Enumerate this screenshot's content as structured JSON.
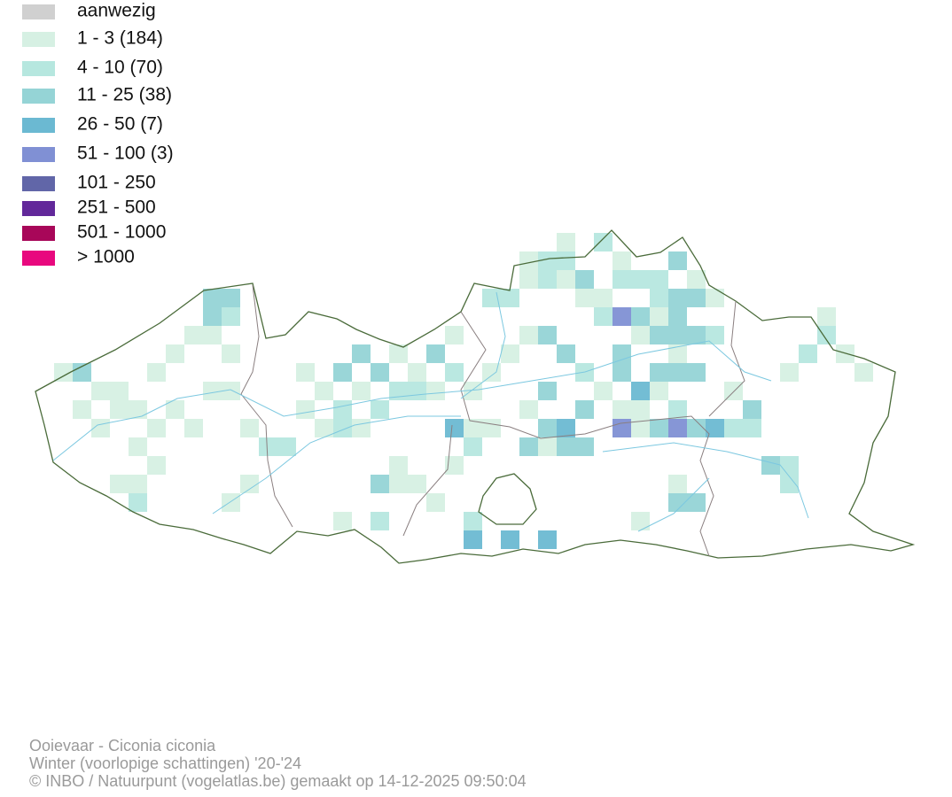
{
  "legend": [
    {
      "label": "aanwezig",
      "color": "#d0d0d0"
    },
    {
      "label": "1 - 3 (184)",
      "color": "#d6f0e3"
    },
    {
      "label": "4 - 10 (70)",
      "color": "#b6e7df"
    },
    {
      "label": "11 - 25 (38)",
      "color": "#95d4d6"
    },
    {
      "label": "26 - 50 (7)",
      "color": "#6bb9d2"
    },
    {
      "label": "51 - 100 (3)",
      "color": "#8090d4"
    },
    {
      "label": "101 - 250",
      "color": "#6166a8"
    },
    {
      "label": "251 - 500",
      "color": "#62289a"
    },
    {
      "label": "501 - 1000",
      "color": "#a80759"
    },
    {
      "label": "> 1000",
      "color": "#e8087e"
    }
  ],
  "footer": [
    "Ooievaar - Ciconia ciconia",
    "Winter (voorlopige schattingen) '20-'24",
    "© INBO / Natuurpunt (vogelatlas.be) gemaakt op 14-12-2025 09:50:04"
  ]
}
